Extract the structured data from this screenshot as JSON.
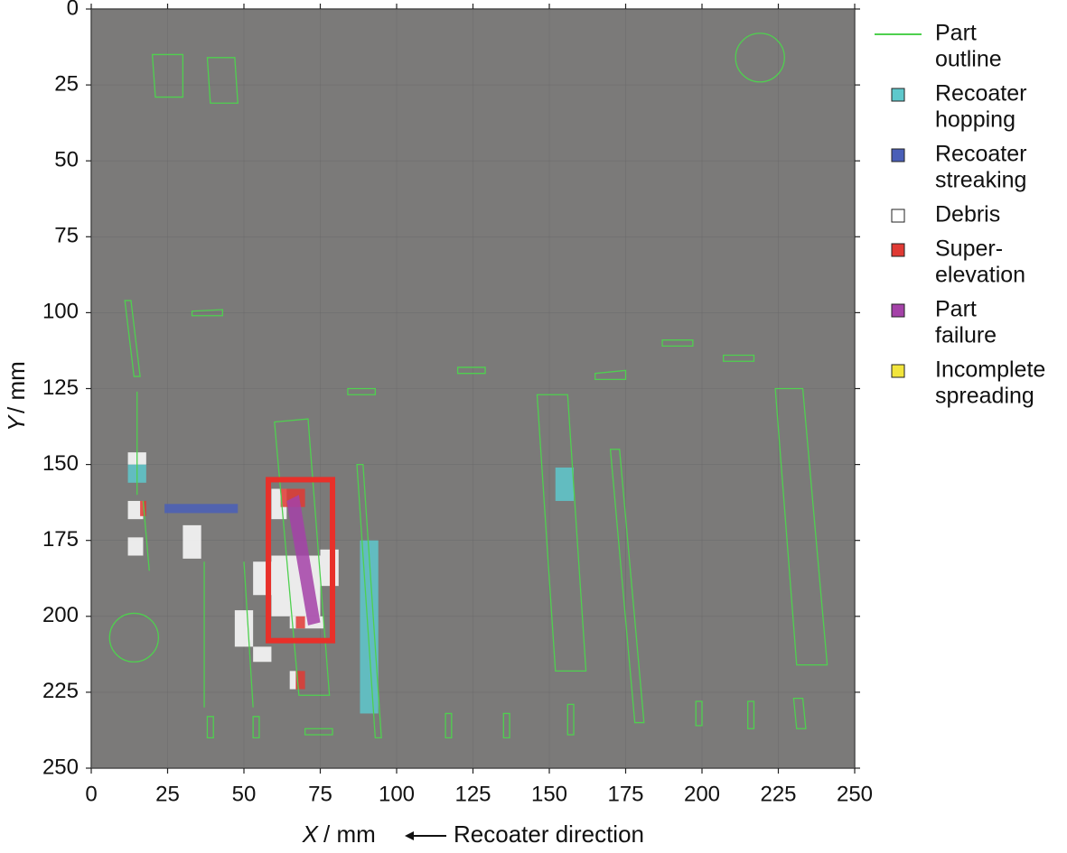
{
  "chart_data": {
    "type": "region-map",
    "x_label": {
      "symbol": "X",
      "unit": "/ mm"
    },
    "y_label": {
      "symbol": "Y",
      "unit": "/ mm"
    },
    "annotation": "Recoater direction",
    "xlim": [
      0,
      250
    ],
    "ylim": [
      0,
      250
    ],
    "y_inverted": true,
    "xticks": [
      0,
      25,
      50,
      75,
      100,
      125,
      150,
      175,
      200,
      225,
      250
    ],
    "yticks": [
      0,
      25,
      50,
      75,
      100,
      125,
      150,
      175,
      200,
      225,
      250
    ],
    "grid": true,
    "background": "#7b7a79",
    "outline_color": "#4fd04f",
    "highlight": {
      "color": "#e8302a",
      "x": [
        58,
        79
      ],
      "y": [
        155,
        208
      ]
    },
    "parts": [
      [
        [
          20,
          15
        ],
        [
          30,
          15
        ],
        [
          30,
          29
        ],
        [
          21,
          29
        ]
      ],
      [
        [
          38,
          16
        ],
        [
          47,
          16
        ],
        [
          48,
          31
        ],
        [
          39,
          31
        ]
      ],
      [
        [
          33,
          99.5
        ],
        [
          43,
          99
        ],
        [
          43,
          101
        ],
        [
          33,
          101
        ]
      ],
      [
        [
          11,
          96
        ],
        [
          13,
          96
        ],
        [
          16,
          121
        ],
        [
          14,
          121
        ]
      ],
      [
        [
          60,
          136
        ],
        [
          71,
          135
        ],
        [
          78,
          226
        ],
        [
          68,
          226
        ]
      ],
      [
        [
          87,
          150
        ],
        [
          89,
          150
        ],
        [
          95,
          240
        ],
        [
          93,
          240
        ]
      ],
      [
        [
          146,
          127
        ],
        [
          156,
          127
        ],
        [
          162,
          218
        ],
        [
          152,
          218
        ]
      ],
      [
        [
          170,
          145
        ],
        [
          173,
          145
        ],
        [
          181,
          235
        ],
        [
          178,
          235
        ]
      ],
      [
        [
          224,
          125
        ],
        [
          233,
          125
        ],
        [
          241,
          216
        ],
        [
          231,
          216
        ]
      ],
      [
        [
          84,
          125
        ],
        [
          93,
          125
        ],
        [
          93,
          127
        ],
        [
          84,
          127
        ]
      ],
      [
        [
          120,
          118
        ],
        [
          129,
          118
        ],
        [
          129,
          120
        ],
        [
          120,
          120
        ]
      ],
      [
        [
          165,
          120
        ],
        [
          175,
          119
        ],
        [
          175,
          122
        ],
        [
          165,
          122
        ]
      ],
      [
        [
          187,
          109
        ],
        [
          197,
          109
        ],
        [
          197,
          111
        ],
        [
          187,
          111
        ]
      ],
      [
        [
          207,
          114
        ],
        [
          217,
          114
        ],
        [
          217,
          116
        ],
        [
          207,
          116
        ]
      ],
      [
        [
          70,
          237
        ],
        [
          79,
          237
        ],
        [
          79,
          239
        ],
        [
          70,
          239
        ]
      ],
      [
        [
          116,
          232
        ],
        [
          118,
          232
        ],
        [
          118,
          240
        ],
        [
          116,
          240
        ]
      ],
      [
        [
          135,
          232
        ],
        [
          137,
          232
        ],
        [
          137,
          240
        ],
        [
          135,
          240
        ]
      ],
      [
        [
          156,
          229
        ],
        [
          158,
          229
        ],
        [
          158,
          239
        ],
        [
          156,
          239
        ]
      ],
      [
        [
          198,
          228
        ],
        [
          200,
          228
        ],
        [
          200,
          236
        ],
        [
          198,
          236
        ]
      ],
      [
        [
          215,
          228
        ],
        [
          217,
          228
        ],
        [
          217,
          237
        ],
        [
          215,
          237
        ]
      ],
      [
        [
          230,
          227
        ],
        [
          233,
          227
        ],
        [
          234,
          237
        ],
        [
          231,
          237
        ]
      ],
      [
        [
          38,
          233
        ],
        [
          40,
          233
        ],
        [
          40,
          240
        ],
        [
          38,
          240
        ]
      ],
      [
        [
          53,
          233
        ],
        [
          55,
          233
        ],
        [
          55,
          240
        ],
        [
          53,
          240
        ]
      ],
      [
        [
          15,
          126
        ],
        [
          15,
          160
        ]
      ],
      [
        [
          17,
          162
        ],
        [
          19,
          185
        ]
      ],
      [
        [
          37,
          182
        ],
        [
          37,
          230
        ]
      ],
      [
        [
          50,
          182
        ],
        [
          53,
          230
        ]
      ]
    ],
    "circles": [
      [
        219,
        16,
        8
      ],
      [
        14,
        207,
        8
      ]
    ],
    "series": [
      {
        "label": [
          "Part",
          "outline"
        ],
        "color": "#4fd04f",
        "marker": "line",
        "regions": []
      },
      {
        "label": [
          "Recoater",
          "hopping"
        ],
        "color": "#5ec8cc",
        "marker": "square",
        "regions": [
          {
            "x": [
              12,
              18
            ],
            "y": [
              150,
              156
            ]
          },
          {
            "x": [
              152,
              158
            ],
            "y": [
              151,
              162
            ]
          },
          {
            "x": [
              88,
              94
            ],
            "y": [
              175,
              232
            ]
          }
        ]
      },
      {
        "label": [
          "Recoater",
          "streaking"
        ],
        "color": "#4a5fb8",
        "marker": "square",
        "regions": [
          {
            "x": [
              24,
              48
            ],
            "y": [
              163,
              166
            ]
          }
        ]
      },
      {
        "label": [
          "Debris"
        ],
        "color": "#ffffff",
        "marker": "square",
        "regions": [
          {
            "x": [
              12,
              18
            ],
            "y": [
              146,
              150
            ]
          },
          {
            "x": [
              12,
              17
            ],
            "y": [
              162,
              168
            ]
          },
          {
            "x": [
              12,
              17
            ],
            "y": [
              174,
              180
            ]
          },
          {
            "x": [
              30,
              36
            ],
            "y": [
              170,
              181
            ]
          },
          {
            "x": [
              47,
              53
            ],
            "y": [
              198,
              210
            ]
          },
          {
            "x": [
              53,
              59
            ],
            "y": [
              210,
              215
            ]
          },
          {
            "x": [
              53,
              59
            ],
            "y": [
              182,
              193
            ]
          },
          {
            "x": [
              59,
              64
            ],
            "y": [
              158,
              168
            ]
          },
          {
            "x": [
              59,
              75
            ],
            "y": [
              180,
              200
            ]
          },
          {
            "x": [
              75,
              81
            ],
            "y": [
              178,
              190
            ]
          },
          {
            "x": [
              65,
              67
            ],
            "y": [
              218,
              224
            ]
          },
          {
            "x": [
              65,
              76
            ],
            "y": [
              200,
              204
            ]
          }
        ]
      },
      {
        "label": [
          "Super-",
          "elevation"
        ],
        "color": "#e03a34",
        "marker": "square",
        "regions": [
          {
            "x": [
              62,
              70
            ],
            "y": [
              158,
              164
            ]
          },
          {
            "x": [
              16,
              18
            ],
            "y": [
              162,
              167
            ]
          },
          {
            "x": [
              67,
              70
            ],
            "y": [
              218,
              224
            ]
          },
          {
            "x": [
              67,
              70
            ],
            "y": [
              200,
              204
            ]
          }
        ]
      },
      {
        "label": [
          "Part",
          "failure"
        ],
        "color": "#a442a8",
        "marker": "square",
        "regions": [
          {
            "points": [
              [
                64,
                162
              ],
              [
                68,
                160
              ],
              [
                75,
                202
              ],
              [
                71,
                203
              ]
            ]
          }
        ]
      },
      {
        "label": [
          "Incomplete",
          "spreading"
        ],
        "color": "#f2e53c",
        "marker": "square",
        "regions": []
      }
    ]
  }
}
